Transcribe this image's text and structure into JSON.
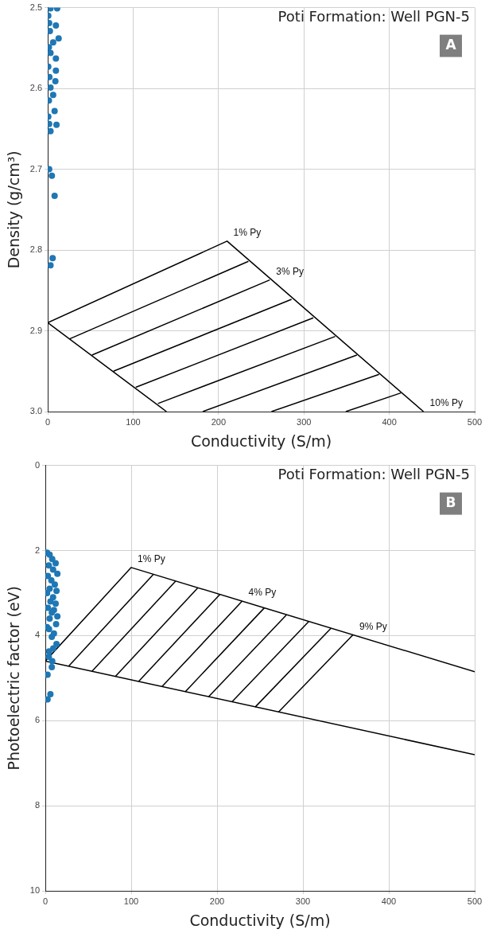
{
  "chart_data": [
    {
      "type": "scatter",
      "title": "Poti Formation: Well PGN-5",
      "xlabel": "Conductivity (S/m)",
      "ylabel": "Density (g/cm³)",
      "xlim": [
        0,
        500
      ],
      "ylim": [
        3.0,
        2.5
      ],
      "xticks": [
        0,
        100,
        200,
        300,
        400,
        500
      ],
      "yticks": [
        2.5,
        2.6,
        2.7,
        2.8,
        2.9,
        {
          "value": 3.0,
          "label": "3.0"
        }
      ],
      "grid": true,
      "annotations": [
        "A",
        {
          "text": "1% Py",
          "x": 210,
          "y": 2.789
        },
        {
          "text": "3% Py",
          "x": 260,
          "y": 2.837
        },
        {
          "text": "10% Py",
          "x": 440,
          "y": 3.0
        }
      ],
      "series": [
        {
          "marker": "circle",
          "color": "#1f77b4",
          "x": [
            3.2,
            11,
            9.5,
            12.7,
            6.3,
            9.5,
            9.5,
            8.9,
            6.3,
            8,
            10.2,
            3.2,
            1.6,
            0.6,
            0.6,
            1.6,
            2.5,
            1.3,
            3.2,
            0.6,
            1.9,
            3.2,
            1.3,
            1.6,
            4.8,
            8,
            5.7,
            3.2
          ],
          "values": [
            2.501,
            2.501,
            2.522,
            2.538,
            2.543,
            2.563,
            2.578,
            2.591,
            2.608,
            2.628,
            2.645,
            2.653,
            2.644,
            2.635,
            2.51,
            2.519,
            2.529,
            2.549,
            2.556,
            2.573,
            2.586,
            2.599,
            2.615,
            2.7,
            2.708,
            2.733,
            2.81,
            2.819
          ]
        },
        {
          "type": "line",
          "color": "#000000",
          "x": [
            139,
            0,
            210,
            440
          ],
          "values": [
            3.0,
            2.89,
            2.789,
            3.0
          ]
        },
        {
          "type": "line",
          "color": "#000000",
          "x": [
            25.7,
            235
          ],
          "values": [
            2.91,
            2.814
          ]
        },
        {
          "type": "line",
          "color": "#000000",
          "x": [
            51.8,
            260
          ],
          "values": [
            2.93,
            2.837
          ]
        },
        {
          "type": "line",
          "color": "#000000",
          "x": [
            77,
            285.5
          ],
          "values": [
            2.95,
            2.861
          ]
        },
        {
          "type": "line",
          "color": "#000000",
          "x": [
            103,
            311
          ],
          "values": [
            2.97,
            2.884
          ]
        },
        {
          "type": "line",
          "color": "#000000",
          "x": [
            129,
            336.6
          ],
          "values": [
            2.99,
            2.907
          ]
        },
        {
          "type": "line",
          "color": "#000000",
          "x": [
            181.5,
            362
          ],
          "values": [
            3.0,
            2.93
          ]
        },
        {
          "type": "line",
          "color": "#000000",
          "x": [
            262,
            388
          ],
          "values": [
            3.0,
            2.954
          ]
        },
        {
          "type": "line",
          "color": "#000000",
          "x": [
            349,
            413.5
          ],
          "values": [
            3.0,
            2.977
          ]
        }
      ]
    },
    {
      "type": "scatter",
      "title": "Poti Formation: Well PGN-5",
      "xlabel": "Conductivity (S/m)",
      "ylabel": "Photoelectric factor (eV)",
      "xlim": [
        0,
        500
      ],
      "ylim": [
        10,
        0
      ],
      "xticks": [
        0,
        100,
        200,
        300,
        400,
        500
      ],
      "yticks": [
        0,
        2,
        4,
        6,
        8,
        10
      ],
      "grid": true,
      "annotations": [
        "B",
        {
          "text": "1% Py",
          "x": 100,
          "y": 2.4
        },
        {
          "text": "4% Py",
          "x": 229.2,
          "y": 3.19
        },
        {
          "text": "9% Py",
          "x": 358.4,
          "y": 3.98
        }
      ],
      "series": [
        {
          "marker": "circle",
          "color": "#1f77b4",
          "x": [
            2,
            5,
            8,
            12,
            4,
            9,
            14,
            3,
            7,
            11,
            5,
            13,
            2,
            9,
            6,
            12,
            3,
            10,
            7.5,
            12.5,
            7.5,
            4.3,
            9.2,
            4.3,
            7.5,
            2.6,
            5.9,
            2.6,
            14,
            5,
            2,
            10,
            13,
            4,
            8
          ],
          "values": [
            2.05,
            2.1,
            2.2,
            2.3,
            2.35,
            2.45,
            2.55,
            2.6,
            2.7,
            2.8,
            2.9,
            2.95,
            3.0,
            3.1,
            3.2,
            3.25,
            3.35,
            3.4,
            3.46,
            3.73,
            4.03,
            3.85,
            4.3,
            4.37,
            4.74,
            4.92,
            5.38,
            5.5,
            3.55,
            3.6,
            3.8,
            3.95,
            4.2,
            4.5,
            4.6
          ]
        },
        {
          "type": "line",
          "color": "#000000",
          "x": [
            500,
            0,
            100,
            500
          ],
          "values": [
            6.8,
            4.6,
            2.4,
            4.85
          ]
        },
        {
          "type": "line",
          "color": "#000000",
          "x": [
            27.2,
            125.8
          ],
          "values": [
            4.72,
            2.56
          ]
        },
        {
          "type": "line",
          "color": "#000000",
          "x": [
            54.3,
            151.7
          ],
          "values": [
            4.84,
            2.72
          ]
        },
        {
          "type": "line",
          "color": "#000000",
          "x": [
            81.5,
            177.5
          ],
          "values": [
            4.96,
            2.88
          ]
        },
        {
          "type": "line",
          "color": "#000000",
          "x": [
            108.6,
            203.4
          ],
          "values": [
            5.08,
            3.03
          ]
        },
        {
          "type": "line",
          "color": "#000000",
          "x": [
            135.8,
            229.2
          ],
          "values": [
            5.2,
            3.19
          ]
        },
        {
          "type": "line",
          "color": "#000000",
          "x": [
            162.9,
            255
          ],
          "values": [
            5.32,
            3.35
          ]
        },
        {
          "type": "line",
          "color": "#000000",
          "x": [
            190.1,
            280.9
          ],
          "values": [
            5.44,
            3.51
          ]
        },
        {
          "type": "line",
          "color": "#000000",
          "x": [
            217.2,
            306.7
          ],
          "values": [
            5.56,
            3.67
          ]
        },
        {
          "type": "line",
          "color": "#000000",
          "x": [
            244.4,
            332.6
          ],
          "values": [
            5.68,
            3.83
          ]
        },
        {
          "type": "line",
          "color": "#000000",
          "x": [
            271.5,
            358.4
          ],
          "values": [
            5.8,
            3.98
          ]
        }
      ]
    }
  ]
}
